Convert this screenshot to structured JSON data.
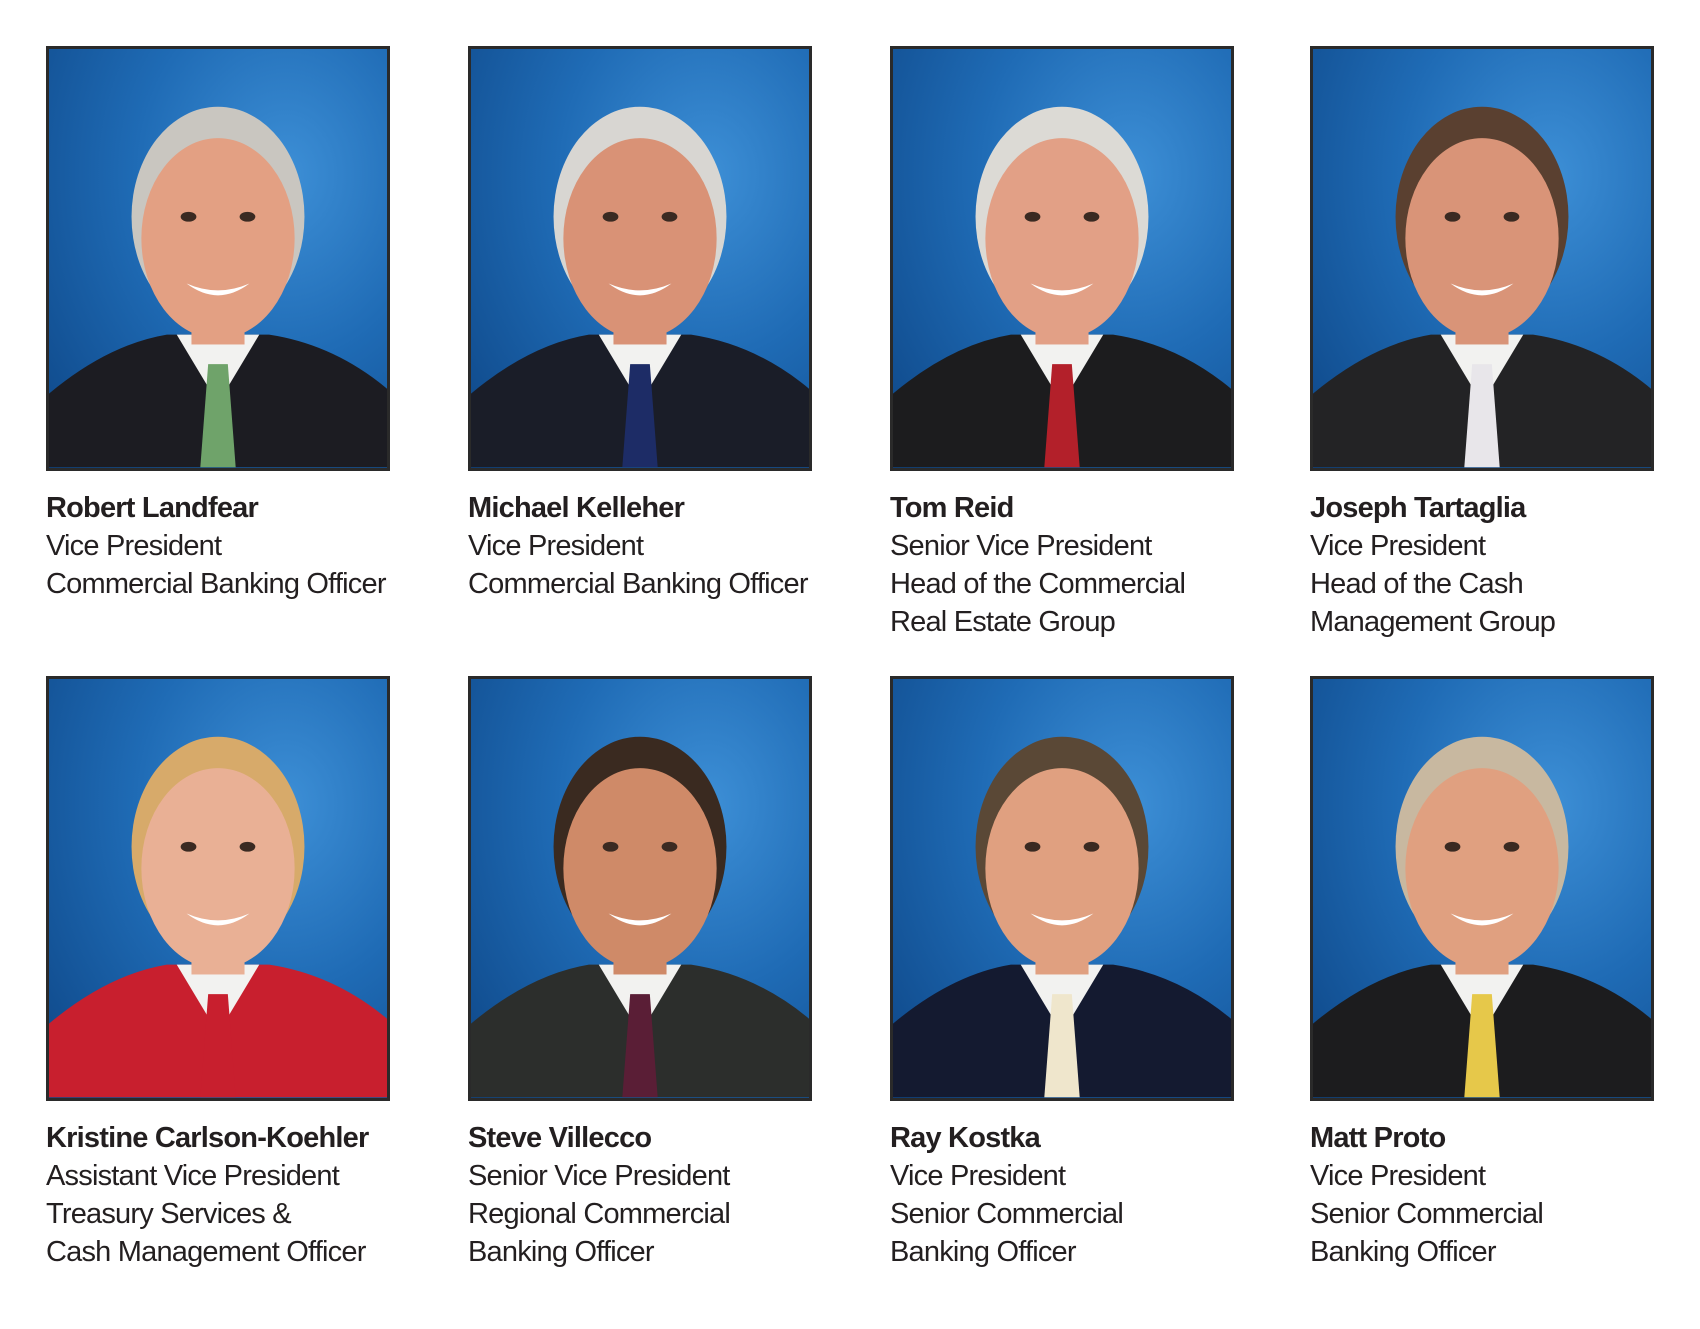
{
  "people": [
    {
      "name": "Robert Landfear",
      "lines": [
        "Vice President",
        "Commercial Banking Officer"
      ],
      "hair": "#c9c6c0",
      "skin": "#e3a083",
      "suit": "#1c1c22",
      "tie": "#6fa36a"
    },
    {
      "name": "Michael Kelleher",
      "lines": [
        "Vice President",
        "Commercial Banking Officer"
      ],
      "hair": "#d8d6d2",
      "skin": "#d99276",
      "suit": "#1a1d28",
      "tie": "#1d2c66"
    },
    {
      "name": "Tom Reid",
      "lines": [
        "Senior Vice President",
        "Head of the Commercial",
        "Real Estate Group"
      ],
      "hair": "#dcdad5",
      "skin": "#e2a086",
      "suit": "#1c1c1e",
      "tie": "#b3202a"
    },
    {
      "name": "Joseph Tartaglia",
      "lines": [
        "Vice President",
        "Head of the Cash",
        "Management Group"
      ],
      "hair": "#5a4030",
      "skin": "#d99478",
      "suit": "#232325",
      "tie": "#e8e6ea"
    },
    {
      "name": "Kristine Carlson-Koehler",
      "lines": [
        "Assistant Vice President",
        "Treasury Services &",
        "Cash Management Officer"
      ],
      "hair": "#d7aa6a",
      "skin": "#e9b095",
      "suit": "#c81f2e",
      "tie": "#c81f2e"
    },
    {
      "name": "Steve Villecco",
      "lines": [
        "Senior Vice President",
        "Regional Commercial",
        "Banking Officer"
      ],
      "hair": "#3a2a20",
      "skin": "#cf8a68",
      "suit": "#2c2e2c",
      "tie": "#5a1e36"
    },
    {
      "name": "Ray Kostka",
      "lines": [
        "Vice President",
        "Senior Commercial",
        "Banking Officer"
      ],
      "hair": "#5a4836",
      "skin": "#e0a080",
      "suit": "#141a30",
      "tie": "#efe6cc"
    },
    {
      "name": "Matt Proto",
      "lines": [
        "Vice President",
        "Senior Commercial",
        "Banking Officer"
      ],
      "hair": "#c8b8a0",
      "skin": "#e0a080",
      "suit": "#1c1c1e",
      "tie": "#e6c84a"
    }
  ]
}
